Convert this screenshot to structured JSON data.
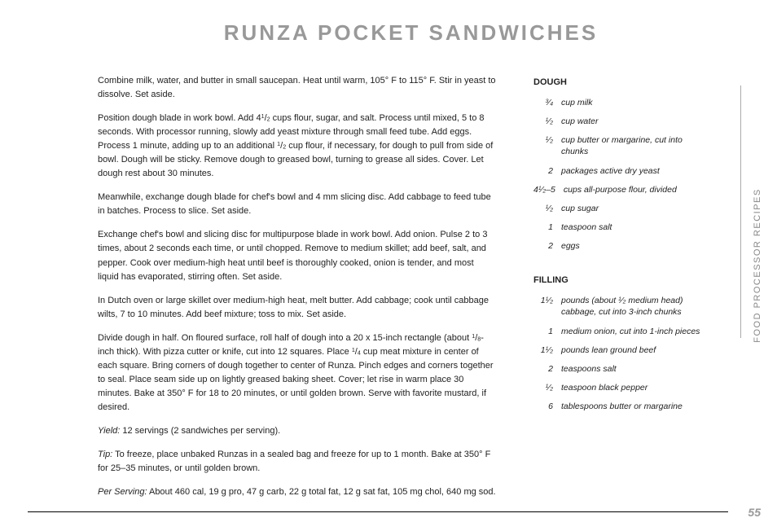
{
  "title": "RUNZA POCKET SANDWICHES",
  "sideLabel": "Food Processor Recipes",
  "pageNumber": "55",
  "instructions": {
    "p1": "Combine milk, water, and butter in small saucepan. Heat until warm, 105° F to 115° F. Stir in yeast to dissolve. Set aside.",
    "p2_pre": "Position dough blade in work bowl. Add 4",
    "p2_frac_n": "1",
    "p2_frac_d": "2",
    "p2_mid": " cups flour, sugar, and salt. Process until mixed, 5 to 8 seconds. With processor running, slowly add yeast mixture through small feed tube. Add eggs. Process 1 minute, adding up to an additional ",
    "p2_frac2_n": "1",
    "p2_frac2_d": "2",
    "p2_post": " cup flour, if necessary, for dough to pull from side of bowl. Dough will be sticky. Remove dough to greased bowl, turning to grease all sides. Cover. Let dough rest about 30 minutes.",
    "p3": "Meanwhile, exchange dough blade for chef's bowl and 4 mm slicing disc. Add cabbage to feed tube in batches. Process to slice. Set aside.",
    "p4": "Exchange chef's bowl and slicing disc for multipurpose blade in work bowl. Add onion. Pulse 2 to 3 times, about 2 seconds each time, or until chopped. Remove to medium skillet; add beef, salt, and pepper. Cook over medium-high heat until beef is thoroughly cooked, onion is tender, and most liquid has evaporated, stirring often. Set aside.",
    "p5": "In Dutch oven or large skillet over medium-high heat, melt butter. Add cabbage; cook until cabbage wilts, 7 to 10 minutes. Add beef mixture; toss to mix. Set aside.",
    "p6_pre": "Divide dough in half. On floured surface, roll half of dough into a 20 x 15-inch rectangle (about ",
    "p6_frac_n": "1",
    "p6_frac_d": "8",
    "p6_mid": "-inch thick). With pizza cutter or knife, cut into 12 squares. Place ",
    "p6_frac2_n": "1",
    "p6_frac2_d": "4",
    "p6_post": " cup meat mixture in center of each square. Bring corners of dough together to center of Runza. Pinch edges and corners together to seal. Place seam side up on lightly greased baking sheet. Cover; let rise in warm place 30 minutes. Bake at 350° F for 18 to 20 minutes, or until golden brown. Serve with favorite mustard, if desired.",
    "yieldLabel": "Yield:",
    "yield": " 12 servings (2 sandwiches per serving).",
    "tipLabel": "Tip:",
    "tip": " To freeze, place unbaked Runzas in a sealed bag and freeze for up to 1 month. Bake at 350° F for 25–35 minutes, or until golden brown.",
    "perLabel": "Per Serving:",
    "per": " About 460 cal, 19 g pro, 47 g carb, 22 g total fat, 12 g sat fat, 105 mg chol, 640 mg sod."
  },
  "groups": [
    {
      "title": "DOUGH",
      "items": [
        {
          "qn": "3",
          "qd": "4",
          "desc": "cup milk"
        },
        {
          "qn": "1",
          "qd": "2",
          "desc": "cup water"
        },
        {
          "qn": "1",
          "qd": "2",
          "desc": "cup butter or margarine, cut into chunks"
        },
        {
          "qw": "2",
          "desc": "packages active dry yeast"
        },
        {
          "qw": "4",
          "qn": "1",
          "qd": "2",
          "suffix": "–5",
          "desc": "cups all-purpose flour, divided"
        },
        {
          "qn": "1",
          "qd": "2",
          "desc": "cup sugar"
        },
        {
          "qw": "1",
          "desc": "teaspoon salt"
        },
        {
          "qw": "2",
          "desc": "eggs"
        }
      ]
    },
    {
      "title": "FILLING",
      "items": [
        {
          "qw": "1",
          "qn": "1",
          "qd": "2",
          "desc_pre": "pounds (about ",
          "dfn": "1",
          "dfd": "2",
          "desc_post": " medium head) cabbage, cut into 3-inch chunks"
        },
        {
          "qw": "1",
          "desc": "medium onion, cut into 1-inch pieces"
        },
        {
          "qw": "1",
          "qn": "1",
          "qd": "2",
          "desc": "pounds lean ground beef"
        },
        {
          "qw": "2",
          "desc": "teaspoons salt"
        },
        {
          "qn": "1",
          "qd": "2",
          "desc": "teaspoon black pepper"
        },
        {
          "qw": "6",
          "desc": "tablespoons butter or margarine"
        }
      ]
    }
  ]
}
